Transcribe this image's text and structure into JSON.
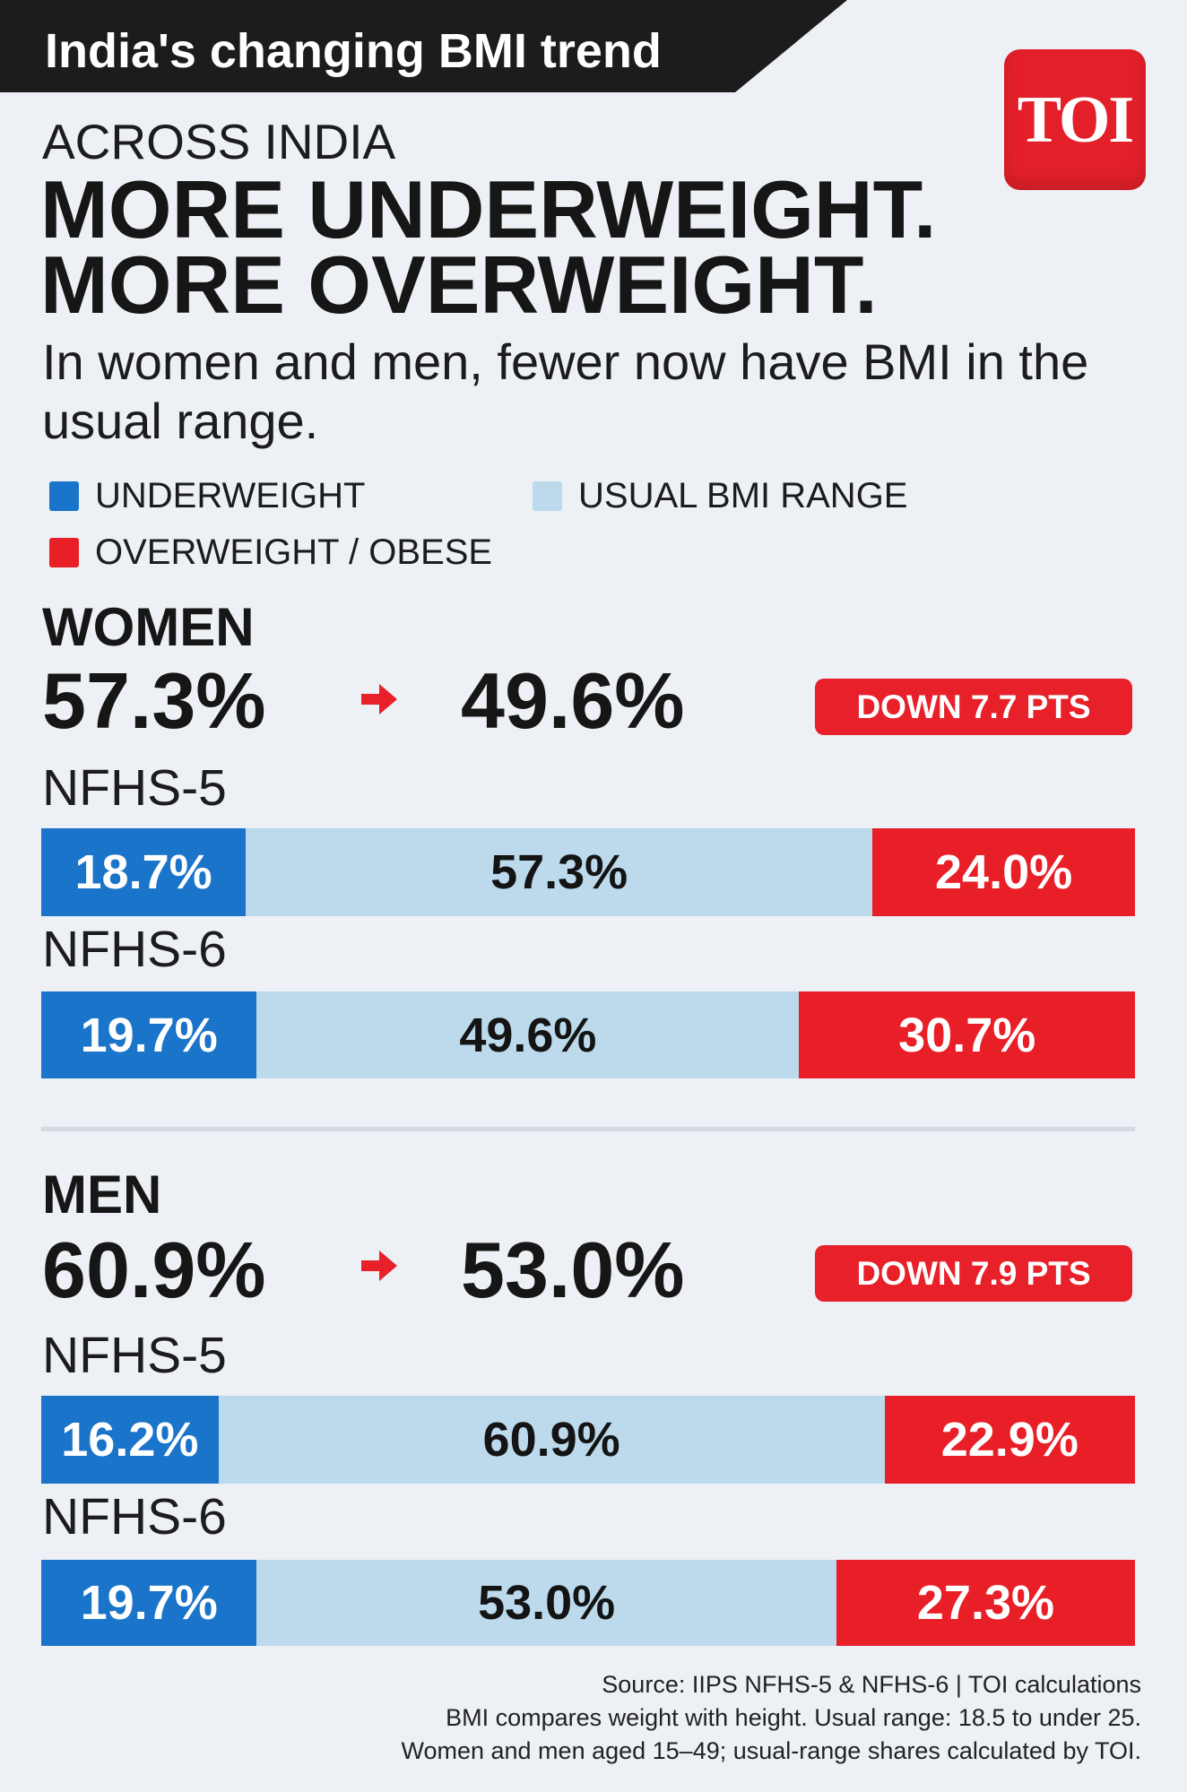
{
  "banner": {
    "title": "India's changing BMI trend"
  },
  "logo": {
    "text": "TOI",
    "color": "#e3202a"
  },
  "intro": {
    "kicker": "ACROSS INDIA",
    "headline_line1": "MORE UNDERWEIGHT.",
    "headline_line2": "MORE OVERWEIGHT.",
    "subtitle": "In women and men, fewer now have BMI in the usual range."
  },
  "icons": {
    "change_arrow": "arrow-right-icon"
  },
  "colors": {
    "background": "#edf0f5",
    "banner": "#1c1c1c",
    "accent": "#e8202a",
    "divider": "#d5d9e1"
  },
  "chart_data": {
    "type": "bar",
    "orientation": "horizontal",
    "stacked": true,
    "legend_position": "top-left",
    "series": [
      {
        "name": "UNDERWEIGHT",
        "color": "#1a74c9"
      },
      {
        "name": "USUAL BMI RANGE",
        "color": "#bcdaec"
      },
      {
        "name": "OVERWEIGHT / OBESE",
        "color": "#e91f27"
      }
    ],
    "groups": [
      {
        "title": "WOMEN",
        "headline_from": "57.3%",
        "headline_to": "49.6%",
        "change": "DOWN 7.7 PTS",
        "categories": [
          "NFHS-5",
          "NFHS-6"
        ],
        "values": [
          [
            18.7,
            57.3,
            24.0
          ],
          [
            19.7,
            49.6,
            30.7
          ]
        ],
        "labels": [
          [
            "18.7%",
            "57.3%",
            "24.0%"
          ],
          [
            "19.7%",
            "49.6%",
            "30.7%"
          ]
        ]
      },
      {
        "title": "MEN",
        "headline_from": "60.9%",
        "headline_to": "53.0%",
        "change": "DOWN 7.9 PTS",
        "categories": [
          "NFHS-5",
          "NFHS-6"
        ],
        "values": [
          [
            16.2,
            60.9,
            22.9
          ],
          [
            19.7,
            53.0,
            27.3
          ]
        ],
        "labels": [
          [
            "16.2%",
            "60.9%",
            "22.9%"
          ],
          [
            "19.7%",
            "53.0%",
            "27.3%"
          ]
        ]
      }
    ]
  },
  "footer": {
    "lines": [
      "Source: IIPS NFHS-5 & NFHS-6 | TOI calculations",
      "BMI compares weight with height. Usual range: 18.5 to under 25.",
      "Women and men aged 15–49; usual-range shares calculated by TOI."
    ]
  }
}
